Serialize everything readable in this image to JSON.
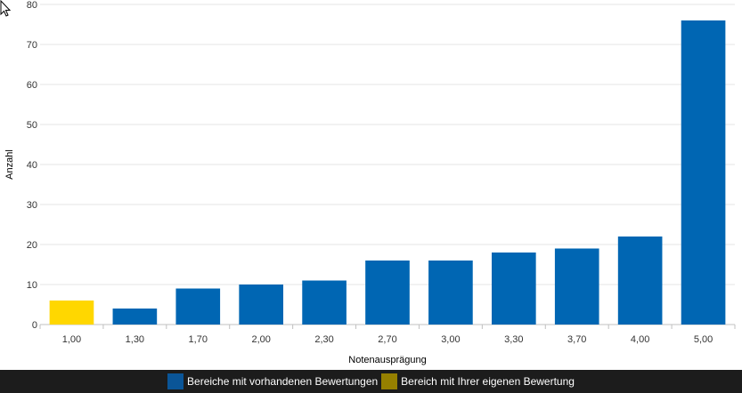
{
  "chart_data": {
    "type": "bar",
    "categories": [
      "1,00",
      "1,30",
      "1,70",
      "2,00",
      "2,30",
      "2,70",
      "3,00",
      "3,30",
      "3,70",
      "4,00",
      "5,00"
    ],
    "values": [
      6,
      4,
      9,
      10,
      11,
      16,
      16,
      18,
      19,
      22,
      76
    ],
    "highlight_index": 0,
    "xlabel": "Notenausprägung",
    "ylabel": "Anzahl",
    "ylim": [
      0,
      80
    ],
    "yticks": [
      "0",
      "10",
      "20",
      "30",
      "40",
      "50",
      "60",
      "70",
      "80"
    ],
    "grid": true,
    "legend_position": "bottom",
    "colors": {
      "bar": "#0066b3",
      "highlight": "#ffd700",
      "grid": "#e6e6e6",
      "axis": "#c0c0c0"
    }
  },
  "legend": {
    "items": [
      {
        "label": "Bereiche mit vorhandenen Bewertungen",
        "color": "#0a5597"
      },
      {
        "label": "Bereich mit Ihrer eigenen Bewertung",
        "color": "#968000"
      }
    ]
  },
  "cursor_icon": "mouse-pointer-icon"
}
